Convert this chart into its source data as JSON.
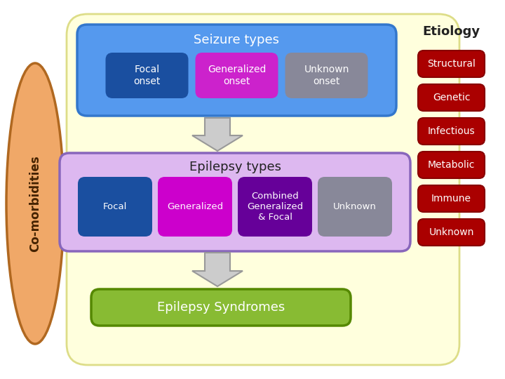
{
  "background_color": "#ffffff",
  "main_bg_color": "#ffffdd",
  "main_bg_border": "#dddd88",
  "comorbidities_label": "Co-morbidities",
  "comorbidities_color": "#f0a868",
  "comorbidities_border": "#b06820",
  "seizure_box_color": "#5599ee",
  "seizure_box_border": "#3377cc",
  "seizure_title": "Seizure types",
  "seizure_subtypes": [
    "Focal\nonset",
    "Generalized\nonset",
    "Unknown\nonset"
  ],
  "seizure_subtype_colors": [
    "#1a4fa0",
    "#cc22cc",
    "#888899"
  ],
  "epilepsy_box_color": "#ddb8f0",
  "epilepsy_box_border": "#8866bb",
  "epilepsy_title": "Epilepsy types",
  "epilepsy_subtypes": [
    "Focal",
    "Generalized",
    "Combined\nGeneralized\n& Focal",
    "Unknown"
  ],
  "epilepsy_subtype_colors": [
    "#1a4fa0",
    "#cc00cc",
    "#660099",
    "#888899"
  ],
  "syndromes_box_color": "#88bb33",
  "syndromes_box_border": "#558800",
  "syndromes_title": "Epilepsy Syndromes",
  "etiology_title": "Etiology",
  "etiology_labels": [
    "Structural",
    "Genetic",
    "Infectious",
    "Metabolic",
    "Immune",
    "Unknown"
  ],
  "etiology_color": "#aa0000",
  "etiology_border": "#880000",
  "arrow_fill": "#cccccc",
  "arrow_edge": "#999999",
  "white": "#ffffff",
  "dark": "#222222"
}
